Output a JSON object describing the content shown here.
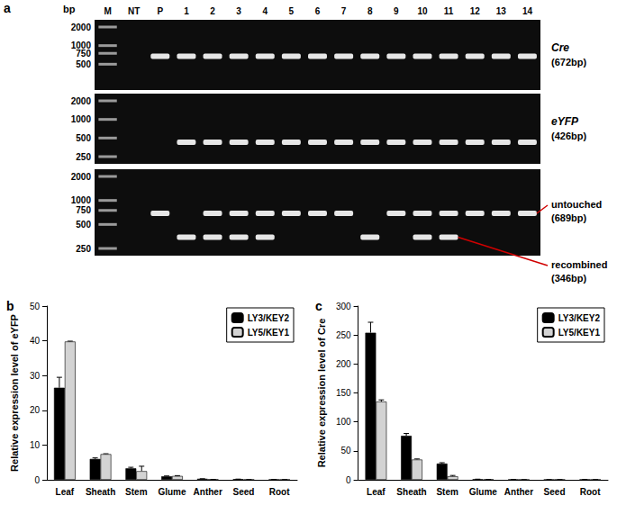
{
  "gel": {
    "title": "a",
    "unit": "bp",
    "lanes": [
      "M",
      "NT",
      "P",
      "1",
      "2",
      "3",
      "4",
      "5",
      "6",
      "7",
      "8",
      "9",
      "10",
      "11",
      "12",
      "13",
      "14"
    ],
    "rows": [
      {
        "ladder": [
          2000,
          1000,
          750,
          500
        ],
        "bands": [
          {
            "name": "Cre",
            "size_label": "(672bp)",
            "bp": 672,
            "lanes": [
              "P",
              "1",
              "2",
              "3",
              "4",
              "5",
              "6",
              "7",
              "8",
              "9",
              "10",
              "11",
              "12",
              "13",
              "14"
            ]
          }
        ]
      },
      {
        "ladder": [
          2000,
          1000,
          500,
          250
        ],
        "bands": [
          {
            "name": "eYFP",
            "size_label": "(426bp)",
            "bp": 426,
            "lanes": [
              "1",
              "2",
              "3",
              "4",
              "5",
              "6",
              "7",
              "8",
              "9",
              "10",
              "11",
              "12",
              "13",
              "14"
            ]
          }
        ]
      },
      {
        "ladder": [
          2000,
          1000,
          750,
          500,
          250
        ],
        "bands": [
          {
            "name": "untouched",
            "size_label": "(689bp)",
            "bp": 689,
            "lanes": [
              "P",
              "2",
              "3",
              "4",
              "5",
              "6",
              "7",
              "9",
              "10",
              "11",
              "12",
              "13",
              "14"
            ]
          },
          {
            "name": "recombined",
            "size_label": "(346bp)",
            "bp": 346,
            "lanes": [
              "1",
              "2",
              "3",
              "4",
              "8",
              "10",
              "11"
            ]
          }
        ]
      }
    ]
  },
  "chart_data": [
    {
      "type": "bar",
      "title": "b",
      "y_label": "Relative expression level of eYFP",
      "categories": [
        "Leaf",
        "Sheath",
        "Stem",
        "Glume",
        "Anther",
        "Seed",
        "Root"
      ],
      "series": [
        {
          "name": "LY3/KEY2",
          "color": "#000000",
          "values": [
            26.5,
            6,
            3.3,
            1,
            0.3,
            0.2,
            0.1
          ],
          "errors": [
            3,
            0.3,
            0.3,
            0.1,
            0,
            0,
            0
          ]
        },
        {
          "name": "LY5/KEY1",
          "color": "#d3d3d3",
          "values": [
            39.8,
            7.4,
            2.5,
            1.1,
            0.1,
            0.05,
            0.05
          ],
          "errors": [
            0.1,
            0.1,
            1.4,
            0.1,
            0,
            0,
            0
          ]
        }
      ],
      "ylim": [
        0,
        50
      ],
      "yticks": [
        0,
        10,
        20,
        30,
        40,
        50
      ],
      "grid": false,
      "legend": "upper right"
    },
    {
      "type": "bar",
      "title": "c",
      "y_label": "Relative expression level of Cre",
      "categories": [
        "Leaf",
        "Sheath",
        "Stem",
        "Glume",
        "Anther",
        "Seed",
        "Root"
      ],
      "series": [
        {
          "name": "LY3/KEY2",
          "color": "#000000",
          "values": [
            254,
            76,
            28,
            1,
            0.5,
            0.3,
            0.5
          ],
          "errors": [
            18,
            4,
            1.5,
            0.1,
            0,
            0,
            0
          ]
        },
        {
          "name": "LY5/KEY1",
          "color": "#d3d3d3",
          "values": [
            135,
            35,
            6,
            0.5,
            0.2,
            0.3,
            0.3
          ],
          "errors": [
            3,
            1,
            1.5,
            0,
            0,
            0,
            0
          ]
        }
      ],
      "ylim": [
        0,
        300
      ],
      "yticks": [
        0,
        50,
        100,
        150,
        200,
        250,
        300
      ],
      "grid": false,
      "legend": "upper right"
    }
  ]
}
